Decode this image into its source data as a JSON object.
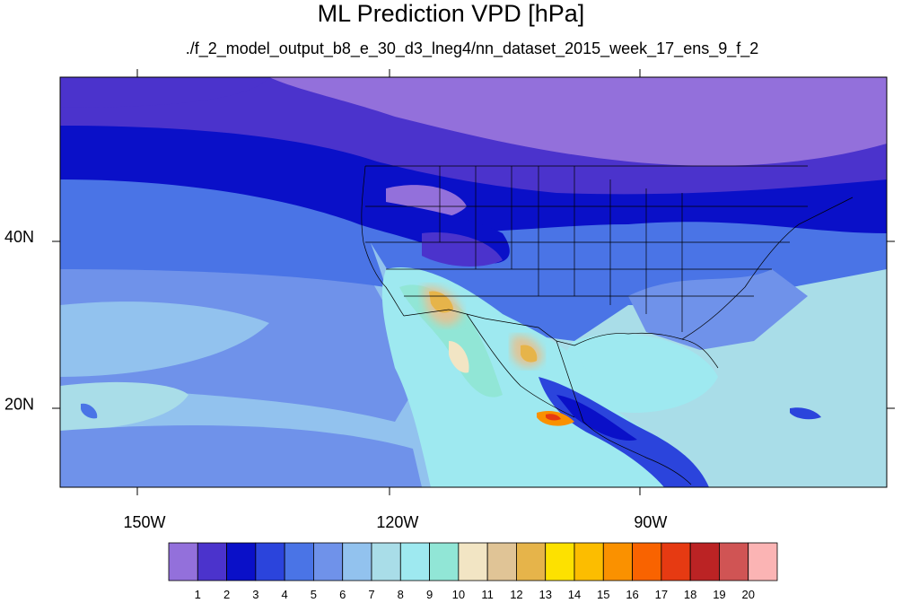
{
  "title": "ML Prediction VPD [hPa]",
  "subtitle": "./f_2_model_output_b8_e_30_d3_lneg4/nn_dataset_2015_week_17_ens_9_f_2",
  "map": {
    "lon_range": [
      -160,
      -62
    ],
    "lat_range": [
      10,
      59
    ],
    "lon_ticks": [
      {
        "value": -150,
        "label": "150W"
      },
      {
        "value": -120,
        "label": "120W"
      },
      {
        "value": -90,
        "label": "90W"
      }
    ],
    "lat_ticks": [
      {
        "value": 40,
        "label": "40N"
      },
      {
        "value": 20,
        "label": "20N"
      }
    ]
  },
  "colorbar": {
    "labels": [
      "1",
      "2",
      "3",
      "4",
      "5",
      "6",
      "7",
      "8",
      "9",
      "10",
      "11",
      "12",
      "13",
      "14",
      "15",
      "16",
      "17",
      "18",
      "19",
      "20"
    ],
    "colors": [
      "#9370db",
      "#4b33cc",
      "#0a10c8",
      "#2b44dc",
      "#4a74e6",
      "#6f92ea",
      "#92c2ee",
      "#a9dde8",
      "#9ee9f0",
      "#91e6d6",
      "#f2e5c4",
      "#e0c496",
      "#e6b44a",
      "#fde100",
      "#fcbd00",
      "#fa9100",
      "#f96300",
      "#e63a12",
      "#bb2324",
      "#d05454",
      "#fbb4b4"
    ]
  }
}
